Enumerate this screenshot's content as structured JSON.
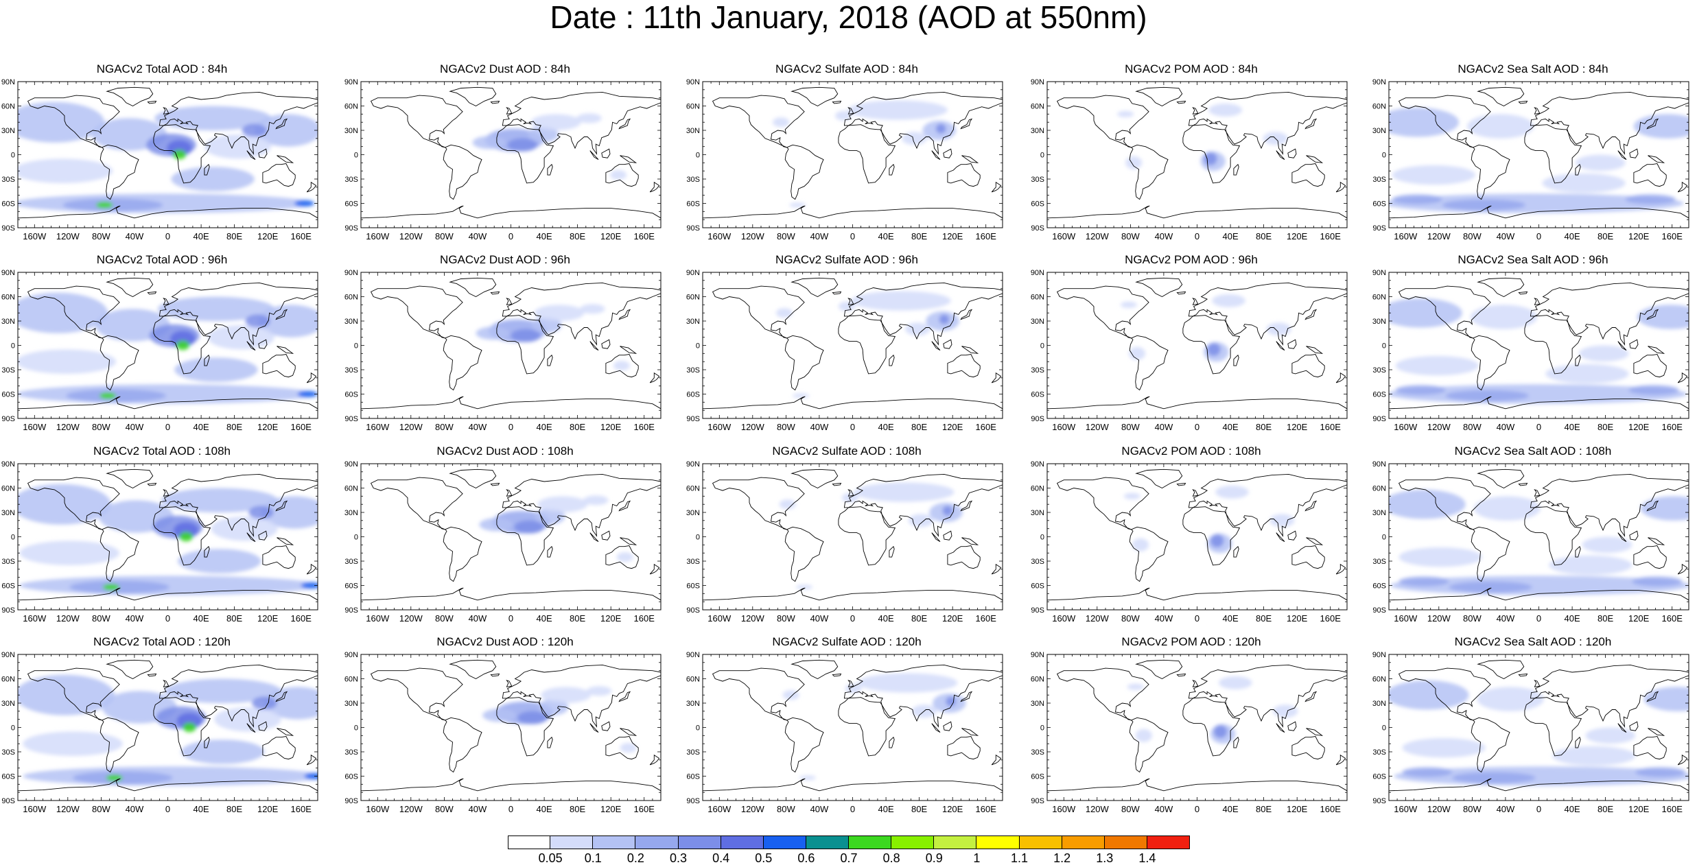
{
  "title": "Date : 11th January, 2018 (AOD at 550nm)",
  "axes": {
    "lat_labels": [
      "90N",
      "60N",
      "30N",
      "0",
      "30S",
      "60S",
      "90S"
    ],
    "lon_labels": [
      "160W",
      "120W",
      "80W",
      "40W",
      "0",
      "40E",
      "80E",
      "120E",
      "160E"
    ]
  },
  "species": [
    {
      "key": "total",
      "titles": [
        "NGACv2 Total AOD : 84h",
        "NGACv2 Total AOD : 96h",
        "NGACv2 Total AOD : 108h",
        "NGACv2 Total AOD : 120h"
      ]
    },
    {
      "key": "dust",
      "titles": [
        "NGACv2 Dust AOD : 84h",
        "NGACv2 Dust AOD : 96h",
        "NGACv2 Dust AOD : 108h",
        "NGACv2 Dust AOD : 120h"
      ]
    },
    {
      "key": "sulfate",
      "titles": [
        "NGACv2 Sulfate AOD : 84h",
        "NGACv2 Sulfate AOD : 96h",
        "NGACv2 Sulfate AOD : 108h",
        "NGACv2 Sulfate AOD : 120h"
      ]
    },
    {
      "key": "pom",
      "titles": [
        "NGACv2 POM AOD : 84h",
        "NGACv2 POM AOD : 96h",
        "NGACv2 POM AOD : 108h",
        "NGACv2 POM AOD : 120h"
      ]
    },
    {
      "key": "seasalt",
      "titles": [
        "NGACv2 Sea Salt AOD : 84h",
        "NGACv2 Sea Salt AOD : 96h",
        "NGACv2 Sea Salt AOD : 108h",
        "NGACv2 Sea Salt  AOD : 120h"
      ]
    }
  ],
  "colorbar": {
    "labels": [
      "0.05",
      "0.1",
      "0.2",
      "0.3",
      "0.4",
      "0.5",
      "0.6",
      "0.7",
      "0.8",
      "0.9",
      "1",
      "1.1",
      "1.2",
      "1.3",
      "1.4"
    ],
    "colors": [
      "#ffffff",
      "#d4dcfa",
      "#b4c2f4",
      "#96a8ee",
      "#7c8ee8",
      "#5f6ee2",
      "#1860f0",
      "#0a9090",
      "#3cd820",
      "#88f000",
      "#c4f040",
      "#ffff00",
      "#f8c000",
      "#f89c00",
      "#f07800",
      "#f02010"
    ]
  }
}
